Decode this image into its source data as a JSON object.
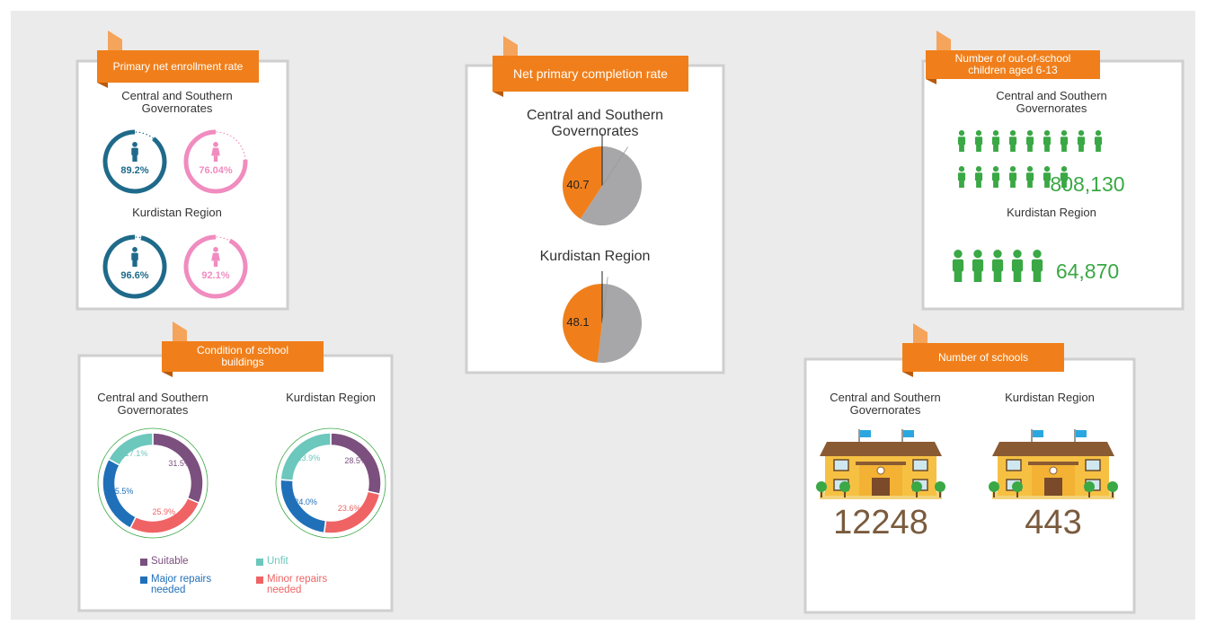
{
  "chart_data": [
    {
      "type": "ring",
      "title": "Primary net enrollment rate",
      "categories": [
        "Central and Southern Governorates",
        "Kurdistan Region"
      ],
      "ylim": [
        0,
        100
      ],
      "series": [
        {
          "color": "#1f6a8a",
          "values": [
            89.2,
            96.6
          ],
          "value_labels": [
            "89.2%",
            "96.6%"
          ]
        },
        {
          "color": "#f08cbf",
          "values": [
            76.04,
            92.1
          ],
          "value_labels": [
            "76.04%",
            "92.1%"
          ]
        }
      ]
    },
    {
      "type": "pie",
      "title": "Net primary completion rate",
      "categories": [
        "Central and Southern Governorates",
        "Kurdistan Region"
      ],
      "values": [
        40.7,
        48.1
      ],
      "ylim": [
        0,
        100
      ],
      "color": "#f07f1b",
      "rest_color": "#a7a7a9"
    },
    {
      "type": "pictogram",
      "title": "Number of out-of-school children aged 6-13",
      "categories": [
        "Central and Southern Governorates",
        "Kurdistan Region"
      ],
      "values": [
        808130,
        64870
      ],
      "value_labels": [
        "808,130",
        "64,870"
      ],
      "color": "#3aa845"
    },
    {
      "type": "donut",
      "title": "Condition of school buildings",
      "categories": [
        "Central and Southern Governorates",
        "Kurdistan Region"
      ],
      "ylim": [
        0,
        100
      ],
      "series": [
        {
          "name": "Suitable",
          "color": "#7b4f7e",
          "values": [
            31.5,
            28.5
          ],
          "value_labels": [
            "31.5%",
            "28.5%"
          ]
        },
        {
          "name": "Minor repairs needed",
          "color": "#ef6364",
          "values": [
            25.9,
            23.6
          ],
          "value_labels": [
            "25.9%",
            "23.6%"
          ]
        },
        {
          "name": "Major repairs needed",
          "color": "#2070b9",
          "values": [
            25.5,
            24.0
          ],
          "value_labels": [
            "25.5%",
            "24.0%"
          ]
        },
        {
          "name": "Unfit",
          "color": "#6cc7bd",
          "values": [
            17.1,
            23.9
          ],
          "value_labels": [
            "17.1%",
            "23.9%"
          ]
        }
      ]
    },
    {
      "type": "schools",
      "title": "Number of schools",
      "categories": [
        "Central and Southern Governorates",
        "Kurdistan Region"
      ],
      "values": [
        12248,
        443
      ],
      "color": "#7a5b3e"
    }
  ]
}
